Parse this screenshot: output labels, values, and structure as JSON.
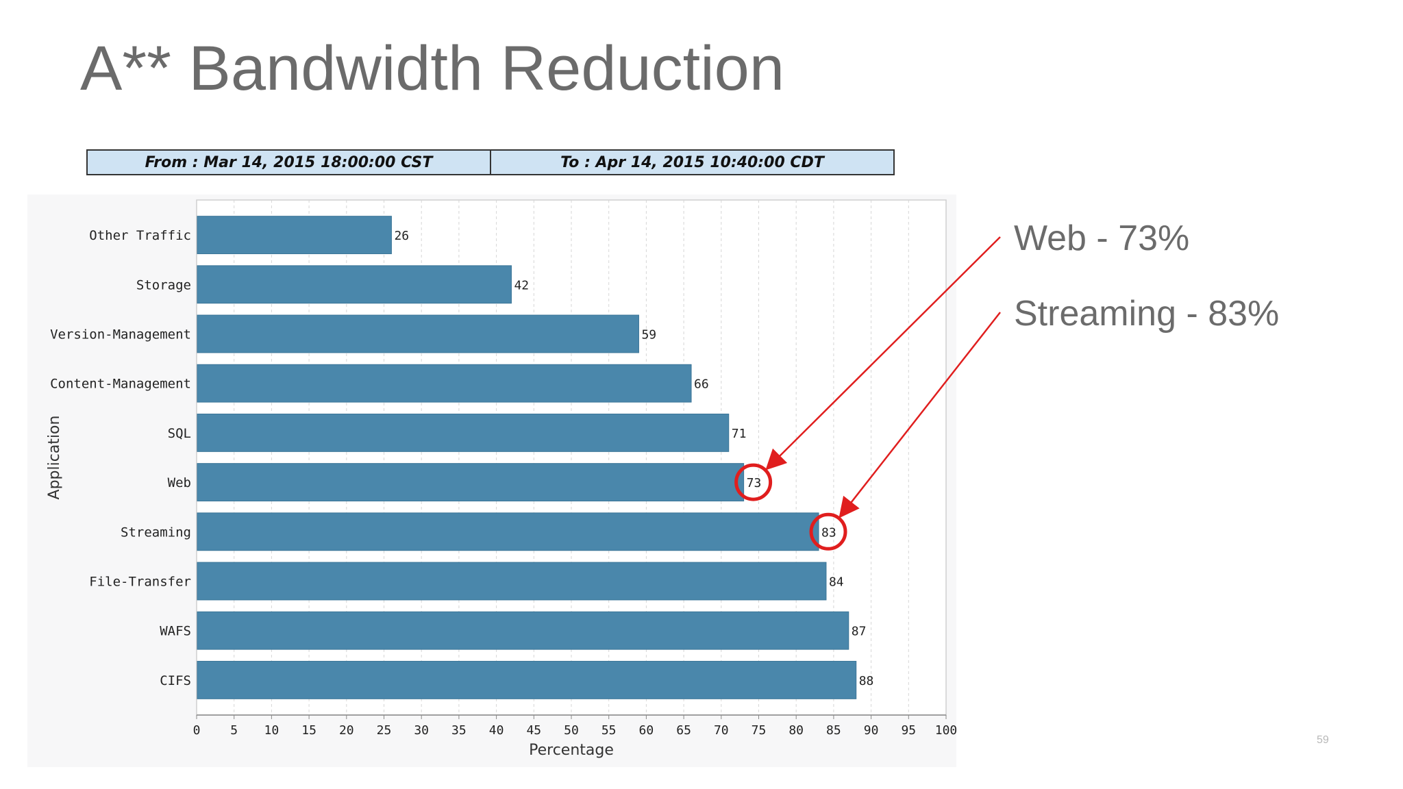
{
  "slide": {
    "title": "A** Bandwidth Reduction",
    "page_number": "59"
  },
  "date_range": {
    "from_label": "From  :  Mar 14, 2015 18:00:00 CST",
    "to_label": "To  :  Apr 14, 2015 10:40:00 CDT"
  },
  "callouts": {
    "web": "Web - 73%",
    "streaming": "Streaming - 83%",
    "color": "#e01e1e"
  },
  "chart_data": {
    "type": "bar",
    "orientation": "horizontal",
    "categories": [
      "Other Traffic",
      "Storage",
      "Version-Management",
      "Content-Management",
      "SQL",
      "Web",
      "Streaming",
      "File-Transfer",
      "WAFS",
      "CIFS"
    ],
    "values": [
      26,
      42,
      59,
      66,
      71,
      73,
      83,
      84,
      87,
      88
    ],
    "data_labels": [
      "26",
      "42",
      "59",
      "66",
      "71",
      "73",
      "83",
      "84",
      "87",
      "88"
    ],
    "xlabel": "Percentage",
    "ylabel": "Application",
    "xlim": [
      0,
      100
    ],
    "xticks": [
      "0",
      "5",
      "10",
      "15",
      "20",
      "25",
      "30",
      "35",
      "40",
      "45",
      "50",
      "55",
      "60",
      "65",
      "70",
      "75",
      "80",
      "85",
      "90",
      "95",
      "100"
    ],
    "grid": true,
    "bar_color": "#4a87ab",
    "highlighted": [
      "Web",
      "Streaming"
    ]
  }
}
